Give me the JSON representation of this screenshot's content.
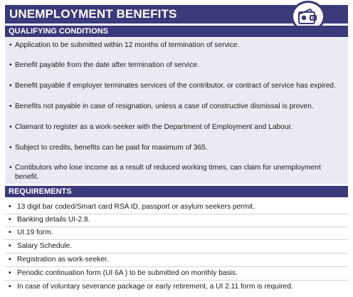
{
  "title": "UNEMPLOYMENT BENEFITS",
  "badge_icon": "wallet-coin-icon",
  "accent_color": "#3b3a7a",
  "qualifying": {
    "heading": "QUALIFYING CONDITIONS",
    "bullet": "•",
    "items": [
      "Application to be submitted within  12 months of termination of service.",
      "Benefit payable from the date after termination of service.",
      "Benefit payable if employer terminates services of the contributor, or contract of service has expired.",
      "Benefits not payable in case of resignation, unless a case of constructive dismissal is proven.",
      "Claimant to register as a work-seeker with the Department of Employment and Labour.",
      "Subject to credits, benefits can be paid for maximum of 365.",
      "Contibutors who lose income as a result of reduced working times, can claim for   unemployment benefit."
    ]
  },
  "requirements": {
    "heading": "REQUIREMENTS",
    "bullet": "•",
    "items": [
      "13 digit bar coded/Smart card RSA ID, passport or asylum seekers permit.",
      "Banking details UI-2.8.",
      "UI.19 form.",
      "Salary Schedule.",
      "Registration as work-seeker.",
      "Periodic continuation form (UI 6A ) to be submitted on monthly basis.",
      "In case of voluntary severance package or early retirement, a UI 2.11 form is required."
    ]
  }
}
